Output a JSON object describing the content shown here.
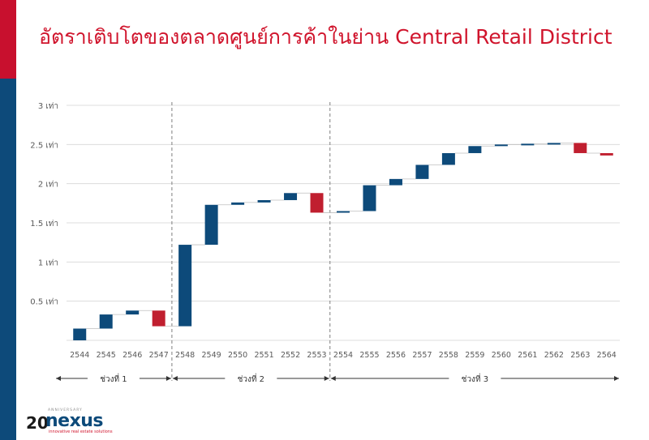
{
  "title": "อัตราเติบโตของตลาดศูนย์การค้าในย่าน Central Retail District",
  "colors": {
    "title": "#d0142c",
    "side_red": "#c8102e",
    "side_blue": "#0d4a7a",
    "increase": "#0d4a7a",
    "decrease": "#c01f2f",
    "grid": "#dcdcdc",
    "connector": "#bfbfbf",
    "axis_text": "#595959"
  },
  "logo": {
    "number": "20",
    "word": "nexus",
    "anniversary": "ANNIVERSARY",
    "tagline": "innovative real estate solutions"
  },
  "chart_data": {
    "type": "bar",
    "subtype": "waterfall",
    "ylim": [
      0,
      3
    ],
    "ytick_values": [
      0.5,
      1,
      1.5,
      2,
      2.5,
      3
    ],
    "ytick_labels": [
      "0.5 เท่า",
      "1 เท่า",
      "1.5 เท่า",
      "2 เท่า",
      "2.5 เท่า",
      "3 เท่า"
    ],
    "grid": true,
    "categories": [
      "2544",
      "2545",
      "2546",
      "2547",
      "2548",
      "2549",
      "2550",
      "2551",
      "2552",
      "2553",
      "2554",
      "2555",
      "2556",
      "2557",
      "2558",
      "2559",
      "2560",
      "2561",
      "2562",
      "2563",
      "2564"
    ],
    "bars": [
      {
        "start": 0.0,
        "end": 0.15
      },
      {
        "start": 0.15,
        "end": 0.33
      },
      {
        "start": 0.33,
        "end": 0.38
      },
      {
        "start": 0.38,
        "end": 0.18
      },
      {
        "start": 0.18,
        "end": 1.22
      },
      {
        "start": 1.22,
        "end": 1.73
      },
      {
        "start": 1.73,
        "end": 1.76
      },
      {
        "start": 1.76,
        "end": 1.79
      },
      {
        "start": 1.79,
        "end": 1.88
      },
      {
        "start": 1.88,
        "end": 1.63
      },
      {
        "start": 1.63,
        "end": 1.65
      },
      {
        "start": 1.65,
        "end": 1.98
      },
      {
        "start": 1.98,
        "end": 2.06
      },
      {
        "start": 2.06,
        "end": 2.24
      },
      {
        "start": 2.24,
        "end": 2.39
      },
      {
        "start": 2.39,
        "end": 2.48
      },
      {
        "start": 2.48,
        "end": 2.5
      },
      {
        "start": 2.5,
        "end": 2.51
      },
      {
        "start": 2.51,
        "end": 2.52
      },
      {
        "start": 2.52,
        "end": 2.39
      },
      {
        "start": 2.39,
        "end": 2.36
      }
    ],
    "phases": [
      {
        "label": "ช่วงที่ 1",
        "from": 0,
        "to": 3
      },
      {
        "label": "ช่วงที่ 2",
        "from": 4,
        "to": 9
      },
      {
        "label": "ช่วงที่ 3",
        "from": 10,
        "to": 20
      }
    ]
  }
}
